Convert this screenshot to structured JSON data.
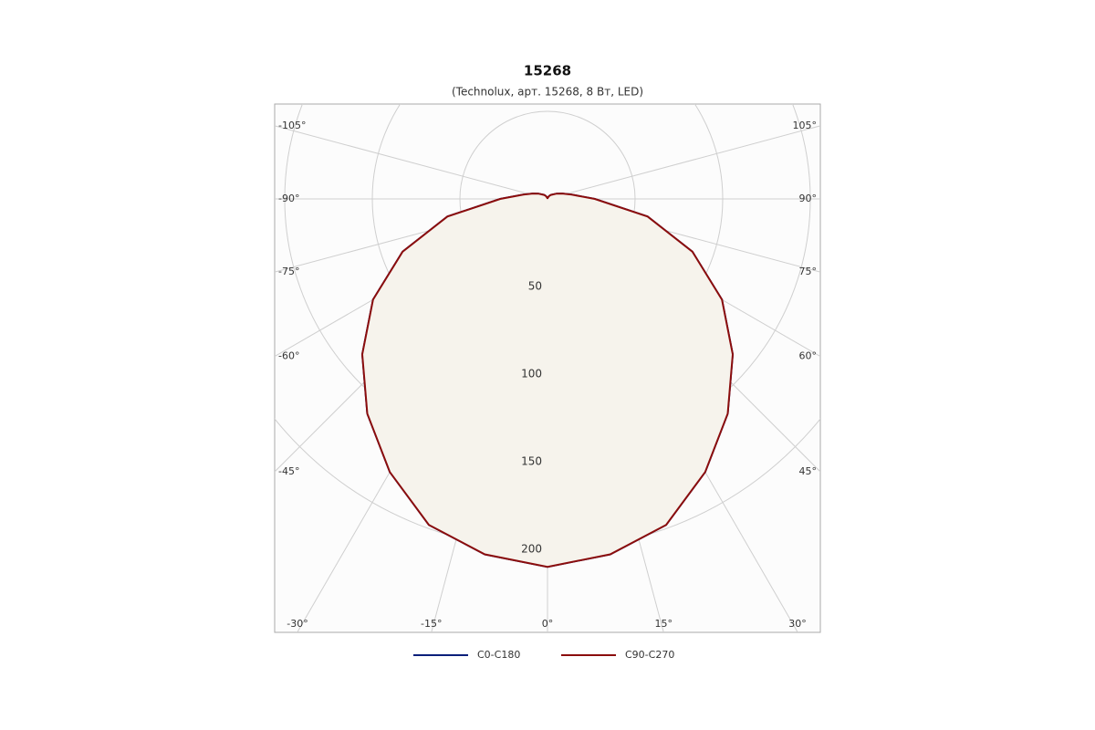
{
  "chart_data": {
    "type": "polar",
    "title": "15268",
    "subtitle": "(Technolux, арт. 15268, 8 Вт, LED)",
    "theta": [
      -180,
      -170,
      -160,
      -150,
      -140,
      -130,
      -120,
      -110,
      -100,
      -90,
      -80,
      -70,
      -60,
      -50,
      -40,
      -30,
      -20,
      -10,
      0,
      10,
      20,
      30,
      40,
      50,
      60,
      70,
      80,
      90,
      100,
      110,
      120,
      130,
      140,
      150,
      160,
      170,
      180
    ],
    "series": [
      {
        "name": "C0-C180",
        "color": "#0a1f7a",
        "values": [
          0,
          1,
          1,
          2,
          3,
          4,
          6,
          9,
          14,
          27,
          58,
          88,
          115,
          138,
          160,
          180,
          198,
          206,
          210,
          206,
          198,
          180,
          160,
          138,
          115,
          88,
          58,
          27,
          14,
          9,
          6,
          4,
          3,
          2,
          1,
          1,
          0
        ]
      },
      {
        "name": "C90-C270",
        "color": "#8b0d0d",
        "fill": "#f6f3ec",
        "values": [
          0,
          1,
          1,
          2,
          3,
          4,
          6,
          9,
          14,
          27,
          58,
          88,
          115,
          138,
          160,
          180,
          198,
          206,
          210,
          206,
          198,
          180,
          160,
          138,
          115,
          88,
          58,
          27,
          14,
          9,
          6,
          4,
          3,
          2,
          1,
          1,
          0
        ]
      }
    ],
    "rlim": [
      0,
      250
    ],
    "rticks": [
      50,
      100,
      150,
      200
    ],
    "thetaticks": [
      {
        "value": -105,
        "label": "-105°"
      },
      {
        "value": -90,
        "label": "-90°"
      },
      {
        "value": -75,
        "label": "-75°"
      },
      {
        "value": -60,
        "label": "-60°"
      },
      {
        "value": -45,
        "label": "-45°"
      },
      {
        "value": -30,
        "label": "-30°"
      },
      {
        "value": -15,
        "label": "-15°"
      },
      {
        "value": 0,
        "label": "0°"
      },
      {
        "value": 15,
        "label": "15°"
      },
      {
        "value": 30,
        "label": "30°"
      },
      {
        "value": 45,
        "label": "45°"
      },
      {
        "value": 60,
        "label": "60°"
      },
      {
        "value": 75,
        "label": "75°"
      },
      {
        "value": 90,
        "label": "90°"
      },
      {
        "value": 105,
        "label": "105°"
      }
    ],
    "grid": true
  }
}
